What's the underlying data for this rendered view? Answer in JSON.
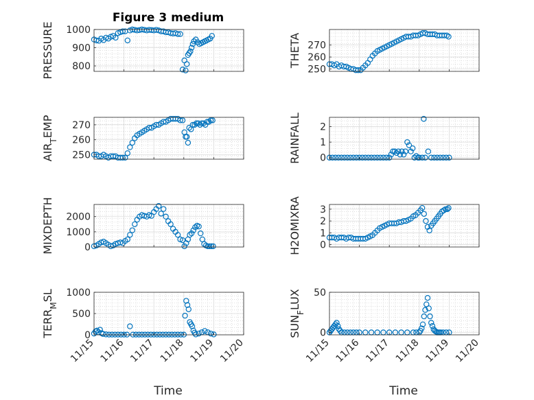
{
  "figure_title": "Figure 3 medium",
  "marker_color": "#0072BD",
  "chart_data": [
    {
      "type": "scatter",
      "ylabel": "PRESSURE",
      "ylim": [
        770,
        1000
      ],
      "yticks": [
        800,
        900,
        1000
      ],
      "xlim": [
        0,
        5
      ],
      "xticks": [
        "11/15",
        "11/16",
        "11/17",
        "11/18",
        "11/19",
        "11/20"
      ],
      "x": [
        0.0,
        0.08,
        0.16,
        0.24,
        0.32,
        0.4,
        0.48,
        0.56,
        0.64,
        0.72,
        0.8,
        0.88,
        0.96,
        1.04,
        1.12,
        1.2,
        1.28,
        1.36,
        1.44,
        1.52,
        1.6,
        1.68,
        1.76,
        1.84,
        1.92,
        2.0,
        2.08,
        2.16,
        2.24,
        2.32,
        2.4,
        2.48,
        2.56,
        2.64,
        2.72,
        2.8,
        2.88,
        2.96,
        3.02,
        3.06,
        3.1,
        3.14,
        3.18,
        3.22,
        3.26,
        3.3,
        3.34,
        3.4,
        3.46,
        3.52,
        3.58,
        3.64,
        3.7,
        3.76,
        3.82,
        3.88,
        3.94
      ],
      "y": [
        945,
        940,
        938,
        950,
        942,
        955,
        950,
        960,
        965,
        955,
        980,
        985,
        990,
        990,
        940,
        995,
        1000,
        998,
        995,
        997,
        1000,
        998,
        995,
        998,
        997,
        995,
        998,
        995,
        990,
        990,
        985,
        985,
        980,
        978,
        980,
        975,
        975,
        780,
        830,
        775,
        810,
        860,
        870,
        880,
        900,
        920,
        935,
        945,
        930,
        920,
        925,
        930,
        935,
        940,
        945,
        950,
        965
      ]
    },
    {
      "type": "scatter",
      "ylabel": "THETA",
      "ylim": [
        248,
        283
      ],
      "yticks": [
        250,
        260,
        270
      ],
      "xlim": [
        0,
        5
      ],
      "xticks": [
        "11/15",
        "11/16",
        "11/17",
        "11/18",
        "11/19",
        "11/20"
      ],
      "x": [
        0.0,
        0.08,
        0.16,
        0.24,
        0.32,
        0.4,
        0.48,
        0.56,
        0.64,
        0.72,
        0.8,
        0.88,
        0.96,
        1.04,
        1.12,
        1.2,
        1.28,
        1.36,
        1.44,
        1.52,
        1.6,
        1.68,
        1.76,
        1.84,
        1.92,
        2.0,
        2.08,
        2.16,
        2.24,
        2.32,
        2.4,
        2.48,
        2.56,
        2.64,
        2.72,
        2.8,
        2.88,
        2.96,
        3.04,
        3.12,
        3.2,
        3.28,
        3.36,
        3.44,
        3.52,
        3.6,
        3.68,
        3.76,
        3.84,
        3.92,
        3.98
      ],
      "y": [
        254,
        254,
        253,
        254,
        252,
        253,
        252,
        252,
        251,
        250,
        250,
        249,
        249,
        249,
        251,
        253,
        255,
        258,
        261,
        263,
        265,
        266,
        267,
        268,
        269,
        270,
        271,
        272,
        273,
        274,
        275,
        276,
        277,
        277,
        277,
        278,
        278,
        278,
        279,
        280,
        280,
        279,
        279,
        279,
        279,
        278,
        278,
        278,
        278,
        278,
        277
      ]
    },
    {
      "type": "scatter",
      "ylabel": "AIR_TEMP",
      "ylim": [
        247,
        275
      ],
      "yticks": [
        250,
        260,
        270
      ],
      "xlim": [
        0,
        5
      ],
      "xticks": [
        "11/15",
        "11/16",
        "11/17",
        "11/18",
        "11/19",
        "11/20"
      ],
      "x": [
        0.0,
        0.08,
        0.16,
        0.24,
        0.32,
        0.4,
        0.48,
        0.56,
        0.64,
        0.72,
        0.8,
        0.88,
        0.96,
        1.04,
        1.12,
        1.2,
        1.28,
        1.36,
        1.44,
        1.52,
        1.6,
        1.68,
        1.76,
        1.84,
        1.92,
        2.0,
        2.08,
        2.16,
        2.24,
        2.32,
        2.4,
        2.48,
        2.56,
        2.64,
        2.72,
        2.8,
        2.88,
        2.96,
        3.02,
        3.06,
        3.1,
        3.14,
        3.18,
        3.24,
        3.3,
        3.36,
        3.42,
        3.48,
        3.54,
        3.6,
        3.66,
        3.72,
        3.78,
        3.84,
        3.9,
        3.96
      ],
      "y": [
        250,
        250,
        249,
        249,
        250,
        249,
        248,
        249,
        249,
        249,
        248,
        248,
        248,
        248,
        251,
        255,
        258,
        261,
        263,
        264,
        265,
        266,
        267,
        268,
        268,
        269,
        270,
        270,
        271,
        272,
        272,
        273,
        274,
        274,
        274,
        274,
        273,
        273,
        265,
        262,
        262,
        258,
        268,
        267,
        270,
        270,
        271,
        271,
        270,
        271,
        271,
        270,
        272,
        272,
        273,
        273
      ]
    },
    {
      "type": "scatter",
      "ylabel": "RAINFALL",
      "ylim": [
        -0.1,
        2.6
      ],
      "yticks": [
        0,
        1,
        2
      ],
      "xlim": [
        0,
        5
      ],
      "xticks": [
        "11/15",
        "11/16",
        "11/17",
        "11/18",
        "11/19",
        "11/20"
      ],
      "x": [
        0.0,
        0.1,
        0.2,
        0.3,
        0.4,
        0.5,
        0.6,
        0.7,
        0.8,
        0.9,
        1.0,
        1.1,
        1.2,
        1.3,
        1.4,
        1.5,
        1.6,
        1.7,
        1.8,
        1.9,
        2.0,
        2.06,
        2.12,
        2.18,
        2.24,
        2.3,
        2.36,
        2.42,
        2.48,
        2.54,
        2.6,
        2.66,
        2.72,
        2.78,
        2.84,
        2.9,
        2.96,
        3.0,
        3.1,
        3.15,
        3.2,
        3.3,
        3.4,
        3.5,
        3.6,
        3.7,
        3.8,
        3.9,
        4.0
      ],
      "y": [
        0,
        0,
        0,
        0,
        0,
        0,
        0,
        0,
        0,
        0,
        0,
        0,
        0,
        0,
        0,
        0,
        0,
        0,
        0,
        0,
        0,
        0.2,
        0.4,
        0.4,
        0.3,
        0.4,
        0.2,
        0.4,
        0.2,
        0.4,
        1.0,
        0.8,
        0.4,
        0.6,
        0,
        0.1,
        0,
        0,
        0,
        2.5,
        0,
        0.4,
        0,
        0,
        0,
        0,
        0,
        0,
        0
      ]
    },
    {
      "type": "scatter",
      "ylabel": "MIXDEPTH",
      "ylim": [
        0,
        2800
      ],
      "yticks": [
        0,
        1000,
        2000
      ],
      "xlim": [
        0,
        5
      ],
      "xticks": [
        "11/15",
        "11/16",
        "11/17",
        "11/18",
        "11/19",
        "11/20"
      ],
      "x": [
        0.0,
        0.08,
        0.16,
        0.24,
        0.32,
        0.4,
        0.48,
        0.56,
        0.64,
        0.72,
        0.8,
        0.88,
        0.96,
        1.04,
        1.12,
        1.2,
        1.28,
        1.36,
        1.44,
        1.52,
        1.6,
        1.68,
        1.76,
        1.84,
        1.92,
        2.0,
        2.08,
        2.16,
        2.24,
        2.32,
        2.4,
        2.48,
        2.56,
        2.64,
        2.72,
        2.8,
        2.88,
        2.96,
        3.02,
        3.08,
        3.14,
        3.2,
        3.26,
        3.32,
        3.38,
        3.44,
        3.5,
        3.56,
        3.62,
        3.68,
        3.74,
        3.8,
        3.86,
        3.92,
        3.98
      ],
      "y": [
        50,
        100,
        200,
        300,
        350,
        250,
        150,
        50,
        100,
        200,
        250,
        300,
        250,
        400,
        500,
        800,
        1100,
        1500,
        1800,
        2000,
        2100,
        2050,
        2000,
        2100,
        2050,
        2300,
        2500,
        2700,
        2200,
        2500,
        2000,
        1700,
        1500,
        1200,
        1000,
        800,
        500,
        450,
        50,
        250,
        500,
        800,
        900,
        1100,
        1300,
        1400,
        1350,
        900,
        500,
        200,
        100,
        50,
        50,
        50,
        50
      ]
    },
    {
      "type": "scatter",
      "ylabel": "H2OMIXRA",
      "ylim": [
        -0.2,
        3.4
      ],
      "yticks": [
        0,
        1,
        2,
        3
      ],
      "xlim": [
        0,
        5
      ],
      "xticks": [
        "11/15",
        "11/16",
        "11/17",
        "11/18",
        "11/19",
        "11/20"
      ],
      "x": [
        0.0,
        0.08,
        0.16,
        0.24,
        0.32,
        0.4,
        0.48,
        0.56,
        0.64,
        0.72,
        0.8,
        0.88,
        0.96,
        1.04,
        1.12,
        1.2,
        1.28,
        1.36,
        1.44,
        1.52,
        1.6,
        1.68,
        1.76,
        1.84,
        1.92,
        2.0,
        2.08,
        2.16,
        2.24,
        2.32,
        2.4,
        2.48,
        2.56,
        2.64,
        2.72,
        2.8,
        2.88,
        2.96,
        3.04,
        3.1,
        3.16,
        3.22,
        3.28,
        3.34,
        3.4,
        3.46,
        3.52,
        3.58,
        3.64,
        3.7,
        3.76,
        3.82,
        3.88,
        3.94,
        3.98
      ],
      "y": [
        0.6,
        0.6,
        0.6,
        0.5,
        0.6,
        0.6,
        0.6,
        0.5,
        0.6,
        0.6,
        0.5,
        0.5,
        0.5,
        0.5,
        0.5,
        0.5,
        0.6,
        0.7,
        0.8,
        1.0,
        1.2,
        1.4,
        1.5,
        1.6,
        1.7,
        1.8,
        1.8,
        1.8,
        1.8,
        1.9,
        1.9,
        2.0,
        2.0,
        2.1,
        2.2,
        2.4,
        2.5,
        2.7,
        2.9,
        3.1,
        2.6,
        2.0,
        1.5,
        1.2,
        1.6,
        1.8,
        2.0,
        2.2,
        2.4,
        2.6,
        2.8,
        2.9,
        3.0,
        3.0,
        3.1
      ]
    },
    {
      "type": "scatter",
      "ylabel": "TERR_MSL",
      "ylim": [
        0,
        1000
      ],
      "yticks": [
        0,
        500,
        1000
      ],
      "xlim": [
        0,
        5
      ],
      "xticks": [
        "11/15",
        "11/16",
        "11/17",
        "11/18",
        "11/19",
        "11/20"
      ],
      "x": [
        0.0,
        0.05,
        0.1,
        0.15,
        0.2,
        0.25,
        0.3,
        0.4,
        0.5,
        0.6,
        0.7,
        0.8,
        0.9,
        1.0,
        1.1,
        1.2,
        1.3,
        1.4,
        1.5,
        1.6,
        1.7,
        1.8,
        1.9,
        2.0,
        2.1,
        2.2,
        2.3,
        2.4,
        2.5,
        2.6,
        2.7,
        2.8,
        2.9,
        3.0,
        3.04,
        3.08,
        3.12,
        3.16,
        3.2,
        3.24,
        3.28,
        3.32,
        3.36,
        3.4,
        3.5,
        3.6,
        3.7,
        3.8,
        3.9,
        4.0
      ],
      "y": [
        30,
        80,
        100,
        60,
        120,
        40,
        20,
        10,
        5,
        5,
        5,
        5,
        5,
        5,
        5,
        200,
        5,
        5,
        5,
        5,
        5,
        5,
        5,
        5,
        5,
        5,
        5,
        5,
        5,
        5,
        5,
        5,
        5,
        5,
        450,
        800,
        700,
        600,
        300,
        250,
        200,
        100,
        50,
        10,
        30,
        60,
        90,
        60,
        30,
        10
      ]
    },
    {
      "type": "scatter",
      "ylabel": "SUN_FLUX",
      "ylim": [
        -3,
        50
      ],
      "yticks": [
        0,
        50
      ],
      "xlim": [
        0,
        5
      ],
      "xticks": [
        "11/15",
        "11/16",
        "11/17",
        "11/18",
        "11/19",
        "11/20"
      ],
      "x": [
        0.0,
        0.04,
        0.08,
        0.12,
        0.16,
        0.2,
        0.24,
        0.28,
        0.32,
        0.36,
        0.4,
        0.5,
        0.6,
        0.7,
        0.8,
        0.9,
        1.0,
        1.2,
        1.4,
        1.6,
        1.8,
        2.0,
        2.2,
        2.4,
        2.6,
        2.8,
        2.9,
        3.0,
        3.04,
        3.08,
        3.12,
        3.16,
        3.2,
        3.24,
        3.28,
        3.32,
        3.36,
        3.4,
        3.44,
        3.48,
        3.52,
        3.56,
        3.6,
        3.64,
        3.68,
        3.72,
        3.8,
        3.9,
        4.0
      ],
      "y": [
        0,
        2,
        4,
        6,
        8,
        10,
        12,
        8,
        4,
        2,
        0,
        0,
        0,
        0,
        0,
        0,
        0,
        0,
        0,
        0,
        0,
        0,
        0,
        0,
        0,
        0,
        0,
        0,
        2,
        5,
        10,
        20,
        28,
        35,
        43,
        30,
        20,
        12,
        8,
        4,
        2,
        1,
        0,
        0,
        0,
        0,
        0,
        0,
        0
      ]
    }
  ],
  "xlabel_left": "Time",
  "xlabel_right": "Time"
}
